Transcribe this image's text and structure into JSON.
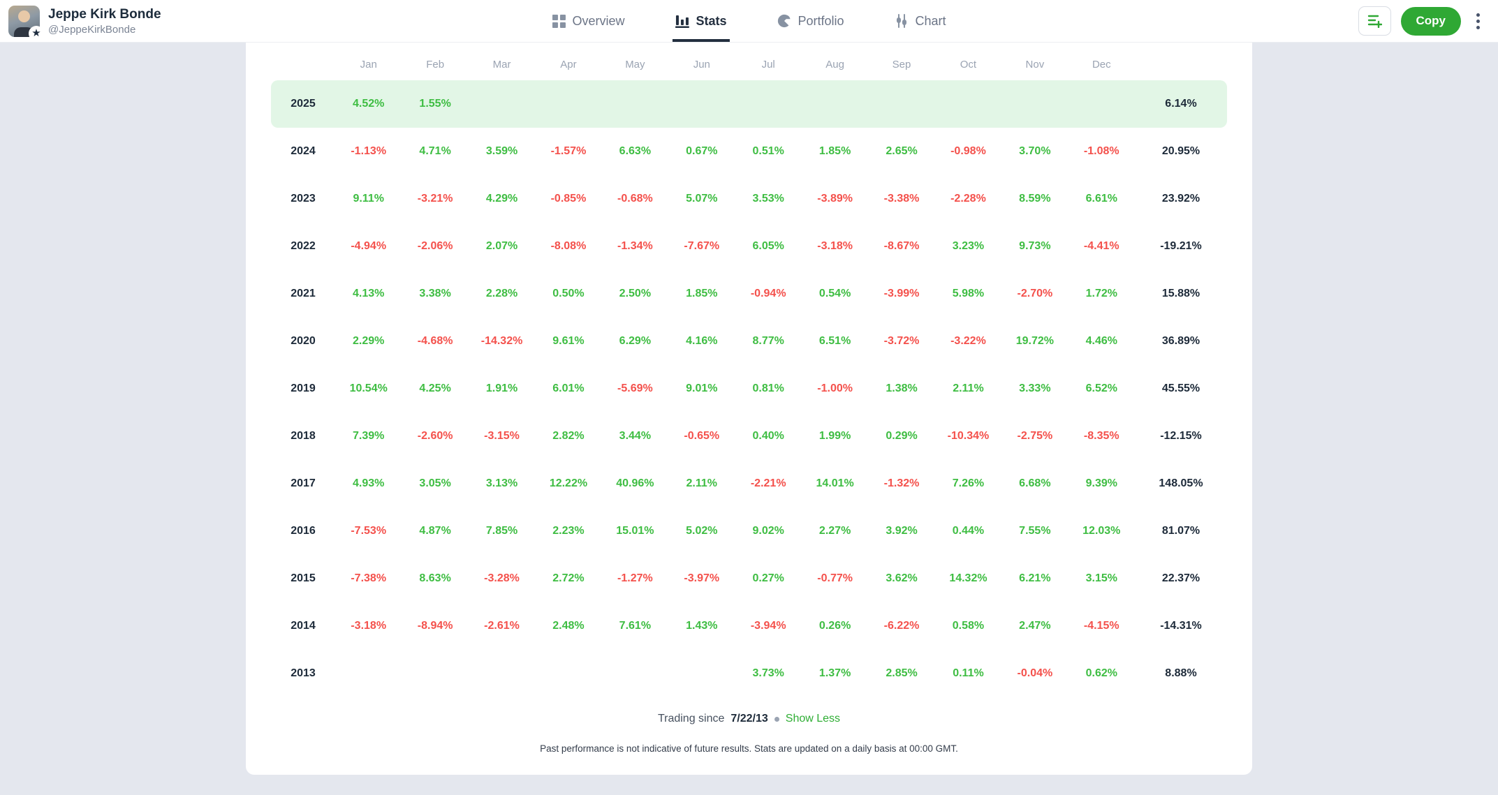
{
  "profile": {
    "name": "Jeppe Kirk Bonde",
    "username": "@JeppeKirkBonde",
    "badge": "star"
  },
  "nav": {
    "tabs": [
      {
        "id": "overview",
        "label": "Overview",
        "icon": "grid-icon",
        "active": false
      },
      {
        "id": "stats",
        "label": "Stats",
        "icon": "bar-chart-icon",
        "active": true
      },
      {
        "id": "portfolio",
        "label": "Portfolio",
        "icon": "pie-chart-icon",
        "active": false
      },
      {
        "id": "chart",
        "label": "Chart",
        "icon": "candlestick-icon",
        "active": false
      }
    ]
  },
  "actions": {
    "watchlist_icon": "add-to-list-icon",
    "copy_label": "Copy",
    "menu_icon": "kebab-menu-icon"
  },
  "stats_table": {
    "months": [
      "Jan",
      "Feb",
      "Mar",
      "Apr",
      "May",
      "Jun",
      "Jul",
      "Aug",
      "Sep",
      "Oct",
      "Nov",
      "Dec"
    ],
    "rows": [
      {
        "year": "2025",
        "highlighted": true,
        "monthly": [
          "4.52%",
          "1.55%",
          null,
          null,
          null,
          null,
          null,
          null,
          null,
          null,
          null,
          null
        ],
        "total": "6.14%"
      },
      {
        "year": "2024",
        "highlighted": false,
        "monthly": [
          "-1.13%",
          "4.71%",
          "3.59%",
          "-1.57%",
          "6.63%",
          "0.67%",
          "0.51%",
          "1.85%",
          "2.65%",
          "-0.98%",
          "3.70%",
          "-1.08%"
        ],
        "total": "20.95%"
      },
      {
        "year": "2023",
        "highlighted": false,
        "monthly": [
          "9.11%",
          "-3.21%",
          "4.29%",
          "-0.85%",
          "-0.68%",
          "5.07%",
          "3.53%",
          "-3.89%",
          "-3.38%",
          "-2.28%",
          "8.59%",
          "6.61%"
        ],
        "total": "23.92%"
      },
      {
        "year": "2022",
        "highlighted": false,
        "monthly": [
          "-4.94%",
          "-2.06%",
          "2.07%",
          "-8.08%",
          "-1.34%",
          "-7.67%",
          "6.05%",
          "-3.18%",
          "-8.67%",
          "3.23%",
          "9.73%",
          "-4.41%"
        ],
        "total": "-19.21%"
      },
      {
        "year": "2021",
        "highlighted": false,
        "monthly": [
          "4.13%",
          "3.38%",
          "2.28%",
          "0.50%",
          "2.50%",
          "1.85%",
          "-0.94%",
          "0.54%",
          "-3.99%",
          "5.98%",
          "-2.70%",
          "1.72%"
        ],
        "total": "15.88%"
      },
      {
        "year": "2020",
        "highlighted": false,
        "monthly": [
          "2.29%",
          "-4.68%",
          "-14.32%",
          "9.61%",
          "6.29%",
          "4.16%",
          "8.77%",
          "6.51%",
          "-3.72%",
          "-3.22%",
          "19.72%",
          "4.46%"
        ],
        "total": "36.89%"
      },
      {
        "year": "2019",
        "highlighted": false,
        "monthly": [
          "10.54%",
          "4.25%",
          "1.91%",
          "6.01%",
          "-5.69%",
          "9.01%",
          "0.81%",
          "-1.00%",
          "1.38%",
          "2.11%",
          "3.33%",
          "6.52%"
        ],
        "total": "45.55%"
      },
      {
        "year": "2018",
        "highlighted": false,
        "monthly": [
          "7.39%",
          "-2.60%",
          "-3.15%",
          "2.82%",
          "3.44%",
          "-0.65%",
          "0.40%",
          "1.99%",
          "0.29%",
          "-10.34%",
          "-2.75%",
          "-8.35%"
        ],
        "total": "-12.15%"
      },
      {
        "year": "2017",
        "highlighted": false,
        "monthly": [
          "4.93%",
          "3.05%",
          "3.13%",
          "12.22%",
          "40.96%",
          "2.11%",
          "-2.21%",
          "14.01%",
          "-1.32%",
          "7.26%",
          "6.68%",
          "9.39%"
        ],
        "total": "148.05%"
      },
      {
        "year": "2016",
        "highlighted": false,
        "monthly": [
          "-7.53%",
          "4.87%",
          "7.85%",
          "2.23%",
          "15.01%",
          "5.02%",
          "9.02%",
          "2.27%",
          "3.92%",
          "0.44%",
          "7.55%",
          "12.03%"
        ],
        "total": "81.07%"
      },
      {
        "year": "2015",
        "highlighted": false,
        "monthly": [
          "-7.38%",
          "8.63%",
          "-3.28%",
          "2.72%",
          "-1.27%",
          "-3.97%",
          "0.27%",
          "-0.77%",
          "3.62%",
          "14.32%",
          "6.21%",
          "3.15%"
        ],
        "total": "22.37%"
      },
      {
        "year": "2014",
        "highlighted": false,
        "monthly": [
          "-3.18%",
          "-8.94%",
          "-2.61%",
          "2.48%",
          "7.61%",
          "1.43%",
          "-3.94%",
          "0.26%",
          "-6.22%",
          "0.58%",
          "2.47%",
          "-4.15%"
        ],
        "total": "-14.31%"
      },
      {
        "year": "2013",
        "highlighted": false,
        "monthly": [
          null,
          null,
          null,
          null,
          null,
          null,
          "3.73%",
          "1.37%",
          "2.85%",
          "0.11%",
          "-0.04%",
          "0.62%"
        ],
        "total": "8.88%"
      }
    ]
  },
  "footer": {
    "trading_since_label": "Trading since",
    "trading_since_date": "7/22/13",
    "toggle_label": "Show Less",
    "disclaimer": "Past performance is not indicative of future results. Stats are updated on a daily basis at 00:00 GMT."
  },
  "colors": {
    "positive": "#3ebd42",
    "negative": "#f4514c",
    "highlight_row_bg": "#e2f6e6",
    "accent_button": "#2fa834",
    "page_background": "#e4e7ee"
  }
}
